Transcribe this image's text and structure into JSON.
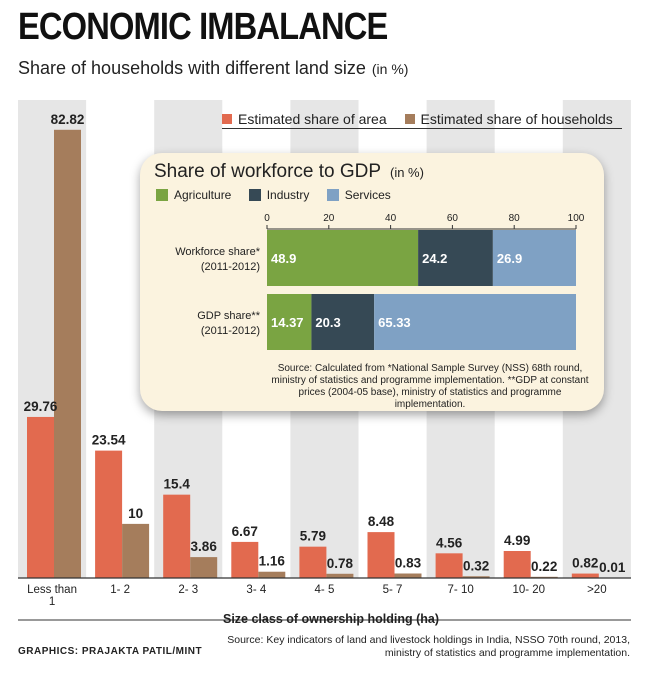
{
  "title": "ECONOMIC IMBALANCE",
  "subtitle": "Share of households with different land size",
  "subtitle_unit": "(in %)",
  "colors": {
    "area": "#e26a4f",
    "households": "#a57d5c",
    "shade": "#e6e6e6",
    "agriculture": "#7aa442",
    "industry": "#364955",
    "services": "#7fa1c4"
  },
  "chart_data": [
    {
      "type": "bar",
      "categories": [
        "Less than 1",
        "1- 2",
        "2- 3",
        "3- 4",
        "4- 5",
        "5- 7",
        "7- 10",
        "10- 20",
        ">20"
      ],
      "series": [
        {
          "name": "Estimated share of area",
          "values": [
            29.76,
            23.54,
            15.4,
            6.67,
            5.79,
            8.48,
            4.56,
            4.99,
            0.82
          ]
        },
        {
          "name": "Estimated share of households",
          "values": [
            82.82,
            10,
            3.86,
            1.16,
            0.78,
            0.83,
            0.32,
            0.22,
            0.01
          ]
        }
      ],
      "value_labels": {
        "area": [
          "29.76",
          "23.54",
          "15.4",
          "6.67",
          "5.79",
          "8.48",
          "4.56",
          "4.99",
          "0.82"
        ],
        "households": [
          "82.82",
          "10",
          "3.86",
          "1.16",
          "0.78",
          "0.83",
          "0.32",
          "0.22",
          "0.01"
        ]
      },
      "xlabel": "Size class of ownership holding (ha)",
      "ylim": [
        0,
        85
      ],
      "legend": "top-right"
    },
    {
      "type": "bar",
      "title": "Share of workforce to GDP",
      "title_unit": "(in %)",
      "orientation": "horizontal-stacked",
      "categories": [
        "Workforce share* (2011-2012)",
        "GDP share** (2011-2012)"
      ],
      "category_lines": [
        [
          "Workforce share*",
          "(2011-2012)"
        ],
        [
          "GDP share**",
          "(2011-2012)"
        ]
      ],
      "series": [
        {
          "name": "Agriculture",
          "values": [
            48.9,
            14.37
          ],
          "labels": [
            "48.9",
            "14.37"
          ]
        },
        {
          "name": "Industry",
          "values": [
            24.2,
            20.3
          ],
          "labels": [
            "24.2",
            "20.3"
          ]
        },
        {
          "name": "Services",
          "values": [
            26.9,
            65.33
          ],
          "labels": [
            "26.9",
            "65.33"
          ]
        }
      ],
      "xlim": [
        0,
        100
      ],
      "xticks": [
        0,
        20,
        40,
        60,
        80,
        100
      ],
      "legend": "top-left",
      "source": "Source: Calculated from *National Sample Survey (NSS) 68th round, ministry of statistics and programme implementation. **GDP at constant prices (2004-05 base), ministry of statistics and programme implementation."
    }
  ],
  "credit": "GRAPHICS: PRAJAKTA PATIL/MINT",
  "source": "Source: Key indicators of land and livestock holdings in India, NSSO 70th round, 2013, ministry of statistics and programme implementation."
}
